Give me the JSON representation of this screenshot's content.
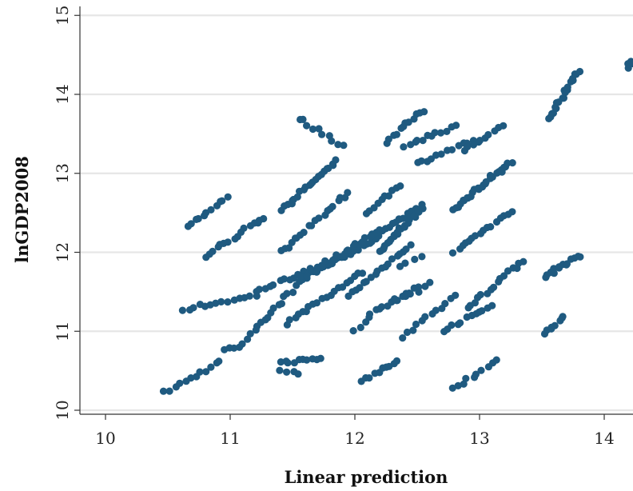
{
  "chart_data": {
    "type": "scatter",
    "title": "",
    "xlabel": "Linear prediction",
    "ylabel": "lnGDP2008",
    "xlim": [
      9.8,
      14.4
    ],
    "ylim": [
      9.95,
      15.0
    ],
    "xticks": [
      10,
      11,
      12,
      13,
      14
    ],
    "yticks": [
      10,
      11,
      12,
      13,
      14,
      15
    ],
    "grid": "horizontal",
    "legend": "none",
    "marker_color": "#1f5a80",
    "series": [
      {
        "clusters": [
          {
            "from": [
              10.48,
              10.22
            ],
            "to": [
              10.92,
              10.62
            ],
            "n": 12
          },
          {
            "from": [
              10.65,
              12.32
            ],
            "to": [
              10.98,
              12.7
            ],
            "n": 11
          },
          {
            "from": [
              10.62,
              11.28
            ],
            "to": [
              11.2,
              11.45
            ],
            "n": 14
          },
          {
            "from": [
              10.8,
              11.95
            ],
            "to": [
              11.28,
              12.45
            ],
            "n": 16
          },
          {
            "from": [
              10.95,
              10.78
            ],
            "to": [
              11.1,
              10.82
            ],
            "n": 5
          },
          {
            "from": [
              11.15,
              10.9
            ],
            "to": [
              11.65,
              11.8
            ],
            "n": 20
          },
          {
            "from": [
              11.2,
              11.5
            ],
            "to": [
              12.0,
              12.0
            ],
            "n": 22
          },
          {
            "from": [
              11.4,
              12.0
            ],
            "to": [
              11.95,
              12.75
            ],
            "n": 20
          },
          {
            "from": [
              11.42,
              12.55
            ],
            "to": [
              11.85,
              13.15
            ],
            "n": 22
          },
          {
            "from": [
              11.4,
              10.6
            ],
            "to": [
              11.72,
              10.66
            ],
            "n": 10
          },
          {
            "from": [
              11.4,
              10.52
            ],
            "to": [
              11.55,
              10.45
            ],
            "n": 4
          },
          {
            "from": [
              11.55,
              13.7
            ],
            "to": [
              11.9,
              13.35
            ],
            "n": 10
          },
          {
            "from": [
              11.45,
              11.1
            ],
            "to": [
              12.05,
              11.75
            ],
            "n": 20
          },
          {
            "from": [
              11.55,
              11.65
            ],
            "to": [
              12.2,
              12.2
            ],
            "n": 26
          },
          {
            "from": [
              11.75,
              11.85
            ],
            "to": [
              12.5,
              12.55
            ],
            "n": 30
          },
          {
            "from": [
              11.95,
              11.45
            ],
            "to": [
              12.45,
              12.1
            ],
            "n": 18
          },
          {
            "from": [
              12.0,
              11.0
            ],
            "to": [
              12.1,
              11.1
            ],
            "n": 3
          },
          {
            "from": [
              12.1,
              12.5
            ],
            "to": [
              12.35,
              12.85
            ],
            "n": 10
          },
          {
            "from": [
              12.1,
              11.2
            ],
            "to": [
              12.5,
              11.55
            ],
            "n": 14
          },
          {
            "from": [
              12.05,
              10.38
            ],
            "to": [
              12.35,
              10.62
            ],
            "n": 10
          },
          {
            "from": [
              12.2,
              12.0
            ],
            "to": [
              12.55,
              12.6
            ],
            "n": 28
          },
          {
            "from": [
              12.25,
              13.4
            ],
            "to": [
              12.55,
              13.8
            ],
            "n": 12
          },
          {
            "from": [
              12.4,
              13.35
            ],
            "to": [
              12.8,
              13.6
            ],
            "n": 12
          },
          {
            "from": [
              12.5,
              13.12
            ],
            "to": [
              12.95,
              13.42
            ],
            "n": 12
          },
          {
            "from": [
              12.38,
              10.92
            ],
            "to": [
              12.8,
              11.45
            ],
            "n": 12
          },
          {
            "from": [
              12.35,
              11.4
            ],
            "to": [
              12.6,
              11.6
            ],
            "n": 6
          },
          {
            "from": [
              12.35,
              11.8
            ],
            "to": [
              12.55,
              11.95
            ],
            "n": 4
          },
          {
            "from": [
              12.8,
              12.55
            ],
            "to": [
              13.25,
              13.15
            ],
            "n": 28
          },
          {
            "from": [
              12.88,
              13.28
            ],
            "to": [
              13.18,
              13.6
            ],
            "n": 10
          },
          {
            "from": [
              12.8,
              12.0
            ],
            "to": [
              13.25,
              12.52
            ],
            "n": 16
          },
          {
            "from": [
              12.72,
              11.02
            ],
            "to": [
              13.1,
              11.32
            ],
            "n": 12
          },
          {
            "from": [
              12.78,
              10.28
            ],
            "to": [
              13.15,
              10.62
            ],
            "n": 10
          },
          {
            "from": [
              12.9,
              11.3
            ],
            "to": [
              13.35,
              11.9
            ],
            "n": 16
          },
          {
            "from": [
              13.52,
              10.98
            ],
            "to": [
              13.68,
              11.18
            ],
            "n": 8
          },
          {
            "from": [
              13.52,
              11.7
            ],
            "to": [
              13.8,
              11.95
            ],
            "n": 14
          },
          {
            "from": [
              13.55,
              13.68
            ],
            "to": [
              13.8,
              14.3
            ],
            "n": 20
          },
          {
            "from": [
              14.18,
              14.35
            ],
            "to": [
              14.42,
              14.62
            ],
            "n": 14
          }
        ]
      }
    ]
  }
}
